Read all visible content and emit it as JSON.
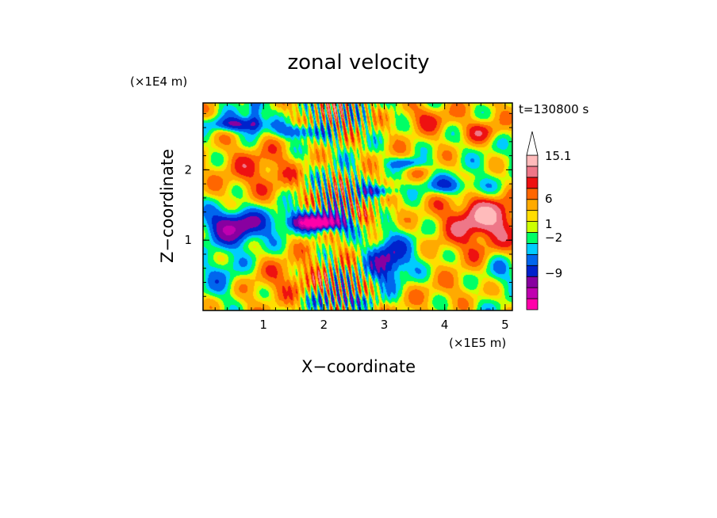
{
  "chart_data": {
    "type": "heatmap",
    "title": "zonal velocity",
    "xlabel": "X−coordinate",
    "ylabel": "Z−coordinate",
    "x_unit": "(×1E5 m)",
    "y_unit": "(×1E4 m)",
    "time_label": "t=130800 s",
    "xlim": [
      0,
      5.12
    ],
    "ylim": [
      0,
      2.95
    ],
    "xticks": [
      "1",
      "2",
      "3",
      "4",
      "5"
    ],
    "yticks": [
      "1",
      "2"
    ],
    "colorbar": {
      "colors": [
        "#ff00aa",
        "#c000b0",
        "#8800a0",
        "#0022cc",
        "#0066ee",
        "#00ccff",
        "#00ff66",
        "#ccff00",
        "#ffdd00",
        "#ffaa00",
        "#ff6600",
        "#ee1111",
        "#ee7788",
        "#ffbbbb"
      ],
      "labels": [
        "15.1",
        "6",
        "1",
        "−2",
        "−9"
      ],
      "extend_top": true
    },
    "features": [
      {
        "x": 0.55,
        "z": 2.65,
        "rx": 0.42,
        "rz": 0.1,
        "v": -7
      },
      {
        "x": 0.85,
        "z": 2.75,
        "rx": 0.12,
        "rz": 0.22,
        "v": -6
      },
      {
        "x": 1.6,
        "z": 2.55,
        "rx": 0.35,
        "rz": 0.1,
        "v": -6
      },
      {
        "x": 0.5,
        "z": 1.2,
        "rx": 0.5,
        "rz": 0.23,
        "v": -9
      },
      {
        "x": 2.05,
        "z": 1.28,
        "rx": 0.75,
        "rz": 0.16,
        "v": -9
      },
      {
        "x": 1.9,
        "z": 1.25,
        "rx": 0.3,
        "rz": 0.07,
        "v": -12
      },
      {
        "x": 2.9,
        "z": 1.7,
        "rx": 0.3,
        "rz": 0.08,
        "v": -6
      },
      {
        "x": 3.4,
        "z": 2.1,
        "rx": 0.3,
        "rz": 0.08,
        "v": -5
      },
      {
        "x": 4.05,
        "z": 1.78,
        "rx": 0.55,
        "rz": 0.13,
        "v": -5
      },
      {
        "x": 3.05,
        "z": 0.7,
        "rx": 0.32,
        "rz": 0.33,
        "v": -8
      },
      {
        "x": 2.3,
        "z": 0.15,
        "rx": 0.45,
        "rz": 0.08,
        "v": -5
      },
      {
        "x": 4.45,
        "z": 1.2,
        "rx": 1.0,
        "rz": 0.45,
        "v": 4
      },
      {
        "x": 4.7,
        "z": 1.35,
        "rx": 0.4,
        "rz": 0.22,
        "v": 6
      },
      {
        "x": 2.7,
        "z": 1.3,
        "rx": 0.35,
        "rz": 0.15,
        "v": 6
      },
      {
        "x": 1.0,
        "z": 2.0,
        "rx": 0.7,
        "rz": 0.35,
        "v": 3
      },
      {
        "x": 3.7,
        "z": 2.75,
        "rx": 0.4,
        "rz": 0.2,
        "v": 4
      },
      {
        "x": 4.6,
        "z": 2.55,
        "rx": 0.3,
        "rz": 0.15,
        "v": 4
      },
      {
        "x": 1.4,
        "z": 0.45,
        "rx": 0.6,
        "rz": 0.3,
        "v": 3
      },
      {
        "x": 4.3,
        "z": 0.3,
        "rx": 0.7,
        "rz": 0.22,
        "v": 1.5
      },
      {
        "x": 0.3,
        "z": 0.5,
        "rx": 0.35,
        "rz": 0.4,
        "v": -3
      },
      {
        "x": 4.9,
        "z": 0.55,
        "rx": 0.3,
        "rz": 0.3,
        "v": -3
      },
      {
        "x": 3.6,
        "z": 1.0,
        "rx": 0.35,
        "rz": 0.4,
        "v": -1.5
      }
    ]
  }
}
